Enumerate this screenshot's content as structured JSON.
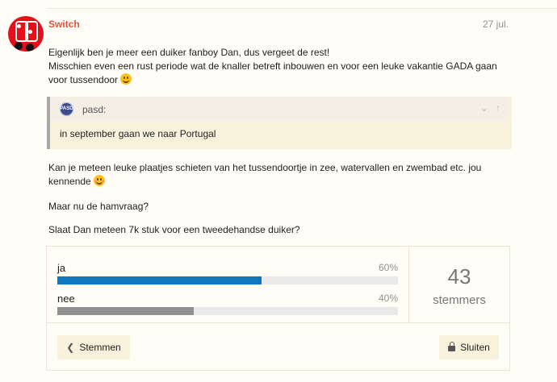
{
  "post": {
    "username": "Switch",
    "date": "27 jul.",
    "paragraph1_line1": "Eigenlijk ben je meer een duiker fanboy Dan, dus vergeet de rest!",
    "paragraph1_line2": "Misschien even een rust periode wat de knaller betreft inbouwen en voor een leuke vakantie GADA gaan",
    "paragraph1_line3": "voor tussendoor",
    "quote": {
      "avatar_text": "PASD",
      "username": "pasd:",
      "text": "in september gaan we naar Portugal"
    },
    "paragraph2_line1": "Kan je meteen leuke plaatjes schieten van het tussendoortje in zee, watervallen en zwembad etc. jou",
    "paragraph2_line2": "kennende",
    "paragraph3": "Maar nu de hamvraag?",
    "paragraph4": "Slaat Dan meteen 7k stuk voor een tweedehandse duiker?"
  },
  "poll": {
    "options": [
      {
        "label": "ja",
        "percent_label": "60%",
        "percent": 60,
        "color": "#0e76bd"
      },
      {
        "label": "nee",
        "percent_label": "40%",
        "percent": 40,
        "color": "#919191"
      }
    ],
    "voters_count": "43",
    "voters_label": "stemmers",
    "vote_button": "Stemmen",
    "close_button": "Sluiten"
  },
  "icons": {
    "avatar": "nintendo-switch-avatar",
    "wink": "wink-emoji-icon",
    "smile": "smiling-emoji-icon",
    "collapse": "chevron-down-icon",
    "expand": "arrow-up-icon",
    "back": "chevron-left-icon",
    "lock": "lock-icon"
  },
  "colors": {
    "username": "#e5533d",
    "quote_bg": "#f8f2dc",
    "bar_ja": "#0e76bd",
    "bar_nee": "#919191"
  }
}
